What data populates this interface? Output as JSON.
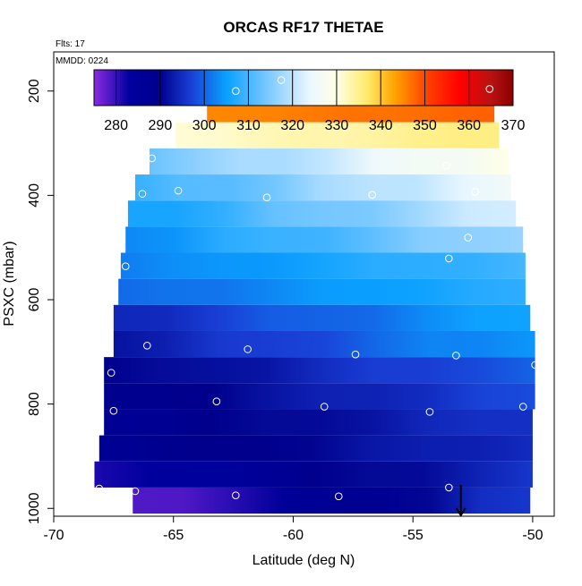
{
  "chart_data": {
    "type": "heatmap",
    "title": "ORCAS RF17 THETAE",
    "annotations": {
      "flights": "Flts: 17",
      "date": "MMDD: 0224"
    },
    "xlabel": "Latitude (deg N)",
    "ylabel": "PSXC (mbar)",
    "xlim": [
      -70,
      -49.1
    ],
    "ylim_reversed": [
      1015,
      125
    ],
    "x_ticks": [
      -70,
      -65,
      -60,
      -55,
      -50
    ],
    "y_ticks": [
      200,
      400,
      600,
      800,
      1000
    ],
    "colorbar": {
      "range": [
        275,
        370
      ],
      "ticks": [
        280,
        290,
        300,
        310,
        320,
        330,
        340,
        350,
        360,
        370
      ],
      "stops": [
        {
          "v": 275,
          "c": "#8a2be2"
        },
        {
          "v": 283,
          "c": "#0000a0"
        },
        {
          "v": 290,
          "c": "#00008b"
        },
        {
          "v": 297,
          "c": "#1a3fd6"
        },
        {
          "v": 305,
          "c": "#0aa0ff"
        },
        {
          "v": 316,
          "c": "#8ed0ff"
        },
        {
          "v": 324,
          "c": "#ecf8ff"
        },
        {
          "v": 330,
          "c": "#ffffe6"
        },
        {
          "v": 337,
          "c": "#ffea6a"
        },
        {
          "v": 343,
          "c": "#ffa500"
        },
        {
          "v": 350,
          "c": "#ff4500"
        },
        {
          "v": 358,
          "c": "#ff0000"
        },
        {
          "v": 365,
          "c": "#b81212"
        },
        {
          "v": 370,
          "c": "#8b0000"
        }
      ]
    },
    "bands": [
      {
        "p": 185,
        "lat_min": -62.6,
        "lat_max": -51.6,
        "values": [
          352,
          366
        ]
      },
      {
        "p": 235,
        "lat_min": -63.6,
        "lat_max": -51.6,
        "values": [
          345,
          348
        ]
      },
      {
        "p": 285,
        "lat_min": -64.9,
        "lat_max": -51.4,
        "values": [
          331,
          336
        ]
      },
      {
        "p": 335,
        "lat_min": -66.0,
        "lat_max": -51.0,
        "values": [
          313,
          330
        ]
      },
      {
        "p": 385,
        "lat_min": -66.6,
        "lat_max": -50.9,
        "values": [
          308,
          326
        ]
      },
      {
        "p": 435,
        "lat_min": -66.9,
        "lat_max": -50.7,
        "values": [
          305,
          322
        ]
      },
      {
        "p": 485,
        "lat_min": -67.0,
        "lat_max": -50.4,
        "values": [
          303,
          318
        ]
      },
      {
        "p": 535,
        "lat_min": -67.2,
        "lat_max": -50.3,
        "values": [
          302,
          310
        ]
      },
      {
        "p": 585,
        "lat_min": -67.3,
        "lat_max": -50.3,
        "values": [
          300,
          308
        ]
      },
      {
        "p": 635,
        "lat_min": -67.5,
        "lat_max": -50.1,
        "values": [
          294,
          306
        ]
      },
      {
        "p": 685,
        "lat_min": -67.5,
        "lat_max": -49.9,
        "values": [
          292,
          305
        ]
      },
      {
        "p": 735,
        "lat_min": -67.9,
        "lat_max": -49.9,
        "values": [
          289,
          300
        ]
      },
      {
        "p": 785,
        "lat_min": -67.9,
        "lat_max": -49.9,
        "values": [
          288,
          298
        ]
      },
      {
        "p": 835,
        "lat_min": -67.9,
        "lat_max": -50.0,
        "values": [
          287,
          296
        ]
      },
      {
        "p": 885,
        "lat_min": -68.1,
        "lat_max": -50.0,
        "values": [
          287,
          295
        ]
      },
      {
        "p": 935,
        "lat_min": -68.3,
        "lat_max": -50.0,
        "values": [
          281,
          296
        ]
      },
      {
        "p": 985,
        "lat_min": -66.7,
        "lat_max": -50.1,
        "values": [
          277,
          296
        ]
      }
    ],
    "points": [
      {
        "x": -60.5,
        "y": 179
      },
      {
        "x": -62.4,
        "y": 200
      },
      {
        "x": -51.8,
        "y": 196
      },
      {
        "x": -65.9,
        "y": 329
      },
      {
        "x": -53.6,
        "y": 343
      },
      {
        "x": -64.8,
        "y": 391
      },
      {
        "x": -66.3,
        "y": 397
      },
      {
        "x": -61.1,
        "y": 404
      },
      {
        "x": -56.7,
        "y": 399
      },
      {
        "x": -52.4,
        "y": 393
      },
      {
        "x": -52.7,
        "y": 481
      },
      {
        "x": -53.5,
        "y": 521
      },
      {
        "x": -67.0,
        "y": 536
      },
      {
        "x": -66.1,
        "y": 688
      },
      {
        "x": -61.9,
        "y": 695
      },
      {
        "x": -57.4,
        "y": 705
      },
      {
        "x": -53.2,
        "y": 707
      },
      {
        "x": -49.9,
        "y": 725
      },
      {
        "x": -67.6,
        "y": 740
      },
      {
        "x": -63.2,
        "y": 795
      },
      {
        "x": -58.7,
        "y": 805
      },
      {
        "x": -54.3,
        "y": 815
      },
      {
        "x": -50.4,
        "y": 805
      },
      {
        "x": -67.5,
        "y": 813
      },
      {
        "x": -68.1,
        "y": 962
      },
      {
        "x": -66.6,
        "y": 967
      },
      {
        "x": -62.4,
        "y": 975
      },
      {
        "x": -58.1,
        "y": 977
      },
      {
        "x": -53.5,
        "y": 960
      },
      {
        "x": -49.9,
        "y": 970
      }
    ],
    "arrow": {
      "x": -53.0,
      "y_from": 955,
      "y_to": 1015
    }
  }
}
